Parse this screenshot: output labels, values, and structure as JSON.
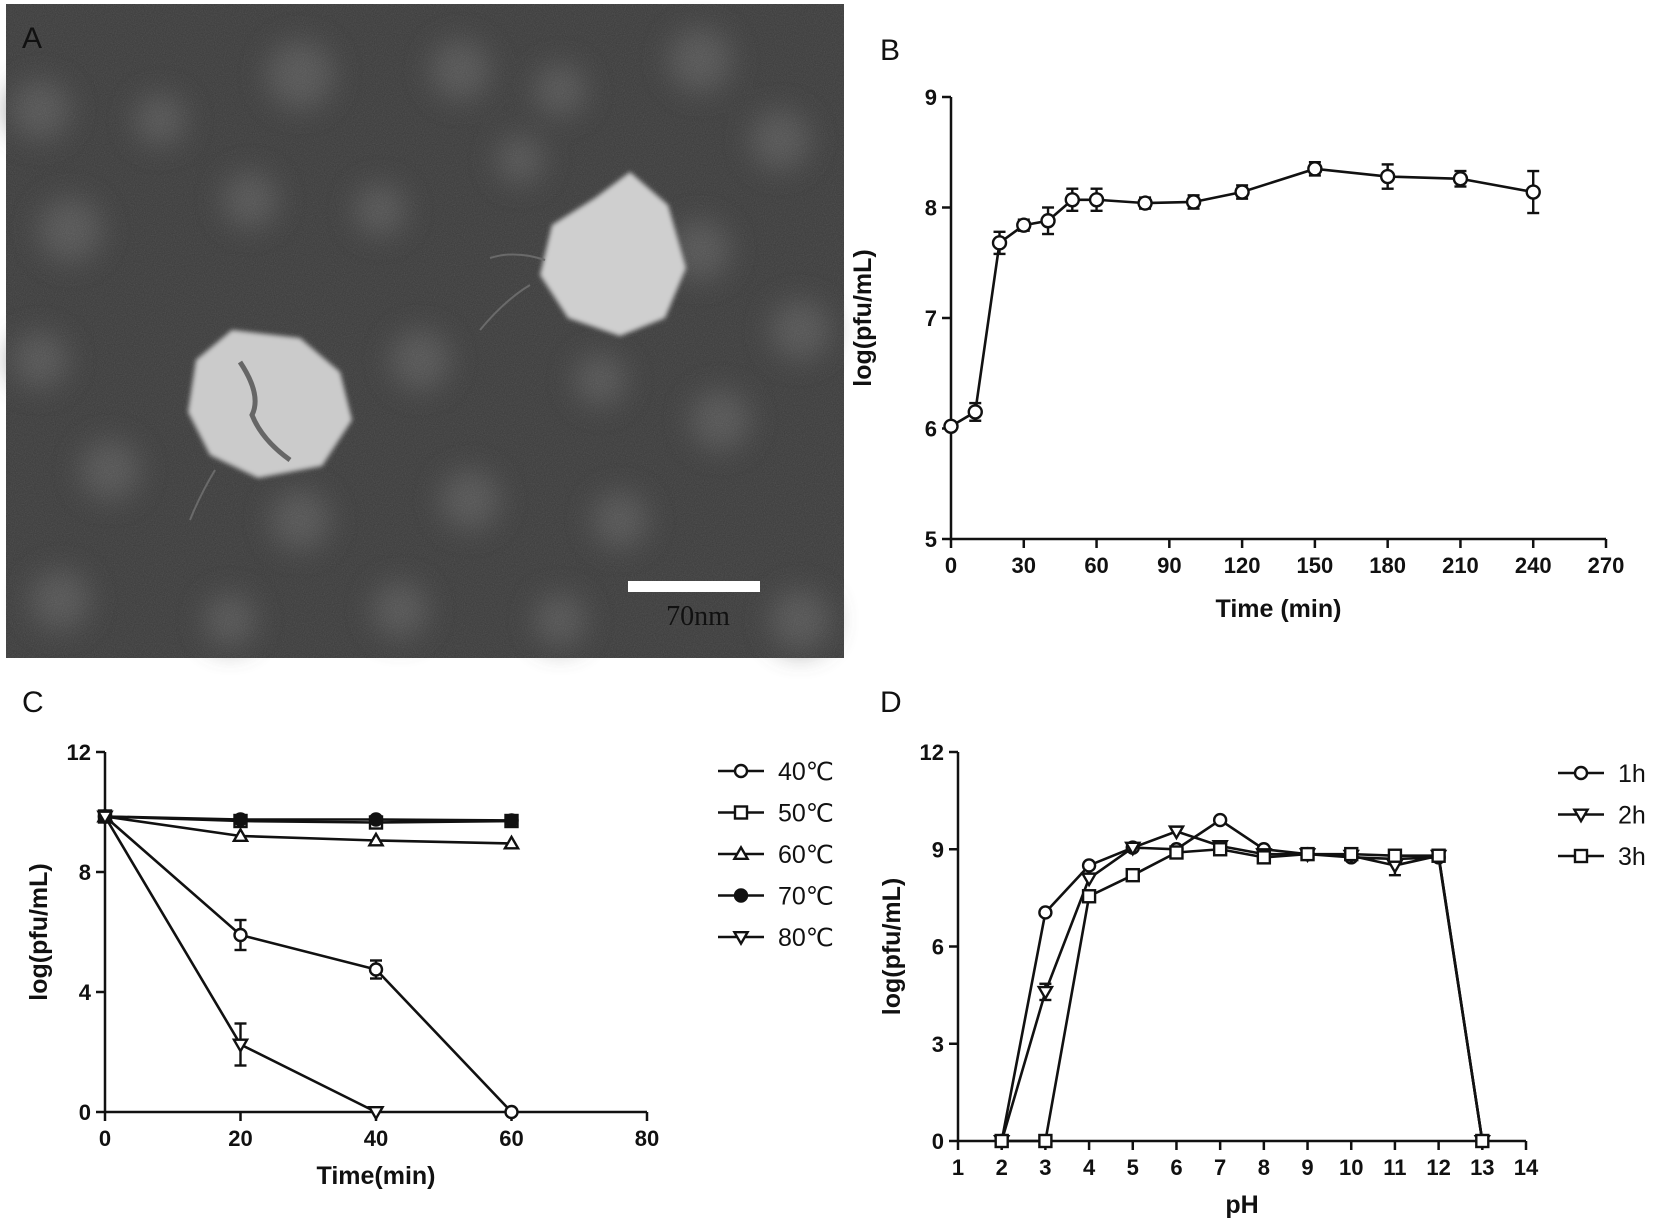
{
  "panels": {
    "A": {
      "letter": "A",
      "scale_bar_label": "70nm"
    },
    "B": {
      "letter": "B"
    },
    "C": {
      "letter": "C"
    },
    "D": {
      "letter": "D"
    }
  },
  "chart_data": [
    {
      "panel": "B",
      "type": "line",
      "xlabel": "Time  (min)",
      "ylabel": "log(pfu/mL)",
      "xlim": [
        0,
        270
      ],
      "ylim": [
        5,
        9
      ],
      "xticks": [
        0,
        30,
        60,
        90,
        120,
        150,
        180,
        210,
        240,
        270
      ],
      "yticks": [
        5,
        6,
        7,
        8,
        9
      ],
      "series": [
        {
          "marker": "circle",
          "x": [
            0,
            10,
            20,
            30,
            40,
            50,
            60,
            80,
            100,
            120,
            150,
            180,
            210,
            240
          ],
          "y": [
            6.02,
            6.15,
            7.68,
            7.84,
            7.88,
            8.07,
            8.07,
            8.04,
            8.05,
            8.14,
            8.35,
            8.28,
            8.26,
            8.14
          ],
          "err": [
            0.03,
            0.08,
            0.1,
            0.05,
            0.12,
            0.1,
            0.1,
            0.05,
            0.06,
            0.06,
            0.06,
            0.11,
            0.07,
            0.19
          ]
        }
      ]
    },
    {
      "panel": "C",
      "type": "line",
      "xlabel": "Time(min)",
      "ylabel": "log(pfu/mL)",
      "xlim": [
        0,
        80
      ],
      "ylim": [
        0,
        12
      ],
      "xticks": [
        0,
        20,
        40,
        60,
        80
      ],
      "yticks": [
        0,
        4,
        8,
        12
      ],
      "legend": "right",
      "series": [
        {
          "name": "40℃",
          "marker": "circle",
          "x": [
            0,
            20,
            40,
            60
          ],
          "y": [
            9.85,
            5.9,
            4.75,
            0
          ],
          "err": [
            0,
            0.5,
            0.3,
            0
          ]
        },
        {
          "name": "50℃",
          "marker": "square",
          "x": [
            0,
            20,
            40,
            60
          ],
          "y": [
            9.85,
            9.7,
            9.65,
            9.7
          ],
          "err": [
            0,
            0,
            0,
            0
          ]
        },
        {
          "name": "60℃",
          "marker": "triangle-up",
          "x": [
            0,
            20,
            40,
            60
          ],
          "y": [
            9.85,
            9.2,
            9.05,
            8.95
          ],
          "err": [
            0,
            0,
            0,
            0
          ]
        },
        {
          "name": "70℃",
          "marker": "circle-filled",
          "x": [
            0,
            20,
            40,
            60
          ],
          "y": [
            9.85,
            9.75,
            9.75,
            9.72
          ],
          "err": [
            0,
            0,
            0,
            0
          ]
        },
        {
          "name": "80℃",
          "marker": "triangle-down",
          "x": [
            0,
            20,
            40
          ],
          "y": [
            9.85,
            2.25,
            0
          ],
          "err": [
            0,
            0.7,
            0
          ]
        }
      ]
    },
    {
      "panel": "D",
      "type": "line",
      "xlabel": "pH",
      "ylabel": "log(pfu/mL)",
      "xlim": [
        1,
        14
      ],
      "ylim": [
        0,
        12
      ],
      "xticks": [
        1,
        2,
        3,
        4,
        5,
        6,
        7,
        8,
        9,
        10,
        11,
        12,
        13,
        14
      ],
      "yticks": [
        0,
        3,
        6,
        9,
        12
      ],
      "legend": "right",
      "series": [
        {
          "name": "1h",
          "marker": "circle",
          "x": [
            2,
            3,
            4,
            5,
            6,
            7,
            8,
            9,
            10,
            11,
            12,
            13
          ],
          "y": [
            0,
            7.05,
            8.5,
            9.05,
            9.0,
            9.9,
            9.0,
            8.85,
            8.75,
            8.7,
            8.75,
            0
          ],
          "err": [
            0,
            0,
            0,
            0,
            0,
            0,
            0,
            0,
            0,
            0,
            0,
            0
          ]
        },
        {
          "name": "2h",
          "marker": "triangle-down",
          "x": [
            2,
            3,
            4,
            5,
            6,
            7,
            8,
            9,
            10,
            11,
            12,
            13
          ],
          "y": [
            0,
            4.6,
            8.1,
            9.05,
            9.55,
            9.1,
            8.85,
            8.85,
            8.8,
            8.5,
            8.8,
            0
          ],
          "err": [
            0,
            0.25,
            0,
            0,
            0,
            0,
            0,
            0,
            0,
            0.3,
            0,
            0
          ]
        },
        {
          "name": "3h",
          "marker": "square",
          "x": [
            2,
            3,
            4,
            5,
            6,
            7,
            8,
            9,
            10,
            11,
            12,
            13
          ],
          "y": [
            0,
            0,
            7.55,
            8.2,
            8.9,
            9.0,
            8.75,
            8.85,
            8.85,
            8.8,
            8.8,
            0
          ],
          "err": [
            0,
            0,
            0,
            0,
            0,
            0,
            0,
            0,
            0,
            0,
            0,
            0
          ]
        }
      ]
    }
  ]
}
